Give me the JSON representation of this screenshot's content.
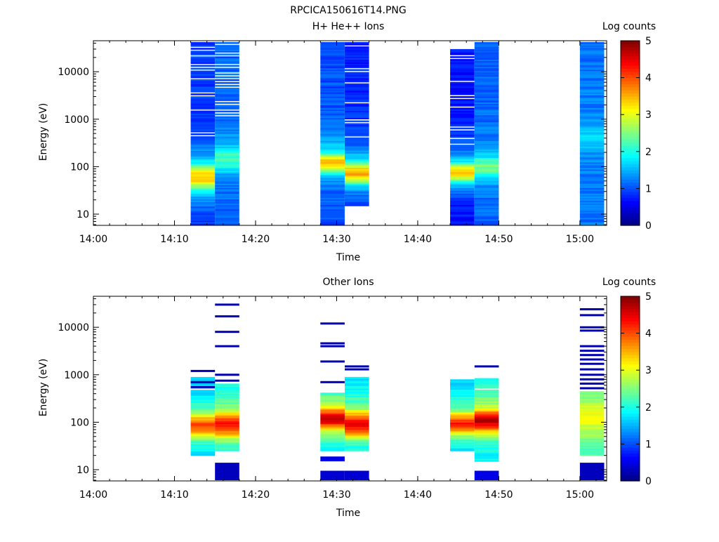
{
  "title": "RPCICA150616T14.PNG",
  "chart_data": [
    {
      "type": "heatmap",
      "title": "H+ He++ Ions",
      "xlabel": "Time",
      "ylabel": "Energy (eV)",
      "x_tick_labels": [
        "14:00",
        "14:10",
        "14:20",
        "14:30",
        "14:40",
        "14:50",
        "15:00"
      ],
      "y_scale": "log",
      "y_tick_labels": [
        "10",
        "100",
        "1000",
        "10000"
      ],
      "colorbar": {
        "label": "Log counts",
        "range": [
          0,
          5
        ],
        "tick_labels": [
          "0",
          "1",
          "2",
          "3",
          "4",
          "5"
        ]
      },
      "columns": [
        {
          "t0": "14:12",
          "t1": "14:15",
          "emax": 42000,
          "emin": 6,
          "peak_lo": 40,
          "peak_hi": 90,
          "peak": 3.4,
          "base": 0.9,
          "tail_base": 0.6,
          "gap_from": 300,
          "gap_step": 0.12
        },
        {
          "t0": "14:15",
          "t1": "14:18",
          "emax": 42000,
          "emin": 6,
          "peak_lo": 100,
          "peak_hi": 220,
          "peak": 2.2,
          "base": 1.1,
          "tail_base": 0.9,
          "gap_from": 1000,
          "gap_step": 0.35
        },
        {
          "t0": "14:28",
          "t1": "14:31",
          "emax": 42000,
          "emin": 6,
          "peak_lo": 100,
          "peak_hi": 150,
          "peak": 3.5,
          "base": 1.0,
          "tail_base": 0.6,
          "gap_from": 100000,
          "gap_step": 1
        },
        {
          "t0": "14:31",
          "t1": "14:34",
          "emax": 42000,
          "emin": 15,
          "peak_lo": 55,
          "peak_hi": 100,
          "peak": 3.6,
          "base": 0.8,
          "tail_base": 0.6,
          "gap_from": 300,
          "gap_step": 0.12
        },
        {
          "t0": "14:44",
          "t1": "14:47",
          "emax": 30000,
          "emin": 6,
          "peak_lo": 60,
          "peak_hi": 100,
          "peak": 3.4,
          "base": 0.7,
          "tail_base": 0.5,
          "gap_from": 300,
          "gap_step": 0.12
        },
        {
          "t0": "14:47",
          "t1": "14:50",
          "emax": 42000,
          "emin": 6,
          "peak_lo": 80,
          "peak_hi": 130,
          "peak": 2.5,
          "base": 1.1,
          "tail_base": 0.8,
          "gap_from": 100000,
          "gap_step": 1
        },
        {
          "t0": "15:00",
          "t1": "15:03",
          "emax": 42000,
          "emin": 6,
          "peak_lo": 300,
          "peak_hi": 600,
          "peak": 1.7,
          "base": 1.2,
          "tail_base": 0.8,
          "gap_from": 100000,
          "gap_step": 1
        }
      ]
    },
    {
      "type": "heatmap",
      "title": "Other Ions",
      "xlabel": "Time",
      "ylabel": "Energy (eV)",
      "x_tick_labels": [
        "14:00",
        "14:10",
        "14:20",
        "14:30",
        "14:40",
        "14:50",
        "15:00"
      ],
      "y_scale": "log",
      "y_tick_labels": [
        "10",
        "100",
        "1000",
        "10000"
      ],
      "colorbar": {
        "label": "Log counts",
        "range": [
          0,
          5
        ],
        "tick_labels": [
          "0",
          "1",
          "2",
          "3",
          "4",
          "5"
        ]
      },
      "columns": [
        {
          "t0": "14:12",
          "t1": "14:15",
          "emax": 900,
          "emin": 20,
          "peak_lo": 60,
          "peak_hi": 120,
          "peak": 4.1,
          "base": 1.5,
          "tail_base": 0.3,
          "gap_from": 350,
          "gap_step": 0.12,
          "lines": [
            1200,
            550,
            700
          ]
        },
        {
          "t0": "14:15",
          "t1": "14:18",
          "emax": 650,
          "emin": 25,
          "peak_lo": 60,
          "peak_hi": 130,
          "peak": 4.3,
          "base": 1.8,
          "tail_base": 0.3,
          "gap_from": 100000,
          "gap_step": 1,
          "lines": [
            30000,
            17000,
            8000,
            4000,
            1000,
            750
          ],
          "low": [
            [
              6,
              14,
              0.3
            ]
          ]
        },
        {
          "t0": "14:28",
          "t1": "14:31",
          "emax": 420,
          "emin": 25,
          "peak_lo": 90,
          "peak_hi": 160,
          "peak": 4.6,
          "base": 1.8,
          "tail_base": 0.3,
          "gap_from": 100000,
          "gap_step": 1,
          "lines": [
            12000,
            4600,
            4000,
            1900,
            700
          ],
          "low": [
            [
              15,
              19,
              0.5
            ],
            [
              6,
              9.5,
              0.4
            ]
          ]
        },
        {
          "t0": "14:31",
          "t1": "14:34",
          "emax": 900,
          "emin": 25,
          "peak_lo": 60,
          "peak_hi": 140,
          "peak": 4.4,
          "base": 1.6,
          "tail_base": 0.3,
          "gap_from": 400,
          "gap_step": 0.12,
          "lines": [
            1500,
            1300
          ],
          "low": [
            [
              6,
              9.5,
              0.4
            ]
          ]
        },
        {
          "t0": "14:44",
          "t1": "14:47",
          "emax": 800,
          "emin": 25,
          "peak_lo": 70,
          "peak_hi": 130,
          "peak": 4.2,
          "base": 1.6,
          "tail_base": 0.3,
          "gap_from": 300,
          "gap_step": 0.12
        },
        {
          "t0": "14:47",
          "t1": "14:50",
          "emax": 850,
          "emin": 15,
          "peak_lo": 80,
          "peak_hi": 150,
          "peak": 4.7,
          "base": 1.8,
          "tail_base": 0.4,
          "gap_from": 500,
          "gap_step": 0.2,
          "lines": [
            1500
          ],
          "low": [
            [
              6,
              9.5,
              0.5
            ]
          ]
        },
        {
          "t0": "15:00",
          "t1": "15:03",
          "emax": 450,
          "emin": 20,
          "peak_lo": 70,
          "peak_hi": 220,
          "peak": 3.1,
          "base": 2.2,
          "tail_base": 0.4,
          "gap_from": 100000,
          "gap_step": 1,
          "lines": [
            24000,
            18000,
            10000,
            8500,
            4000,
            3200,
            2600,
            2100,
            1700,
            1300,
            1000,
            800,
            650,
            520
          ],
          "low": [
            [
              6,
              14,
              0.3
            ]
          ]
        }
      ]
    }
  ]
}
